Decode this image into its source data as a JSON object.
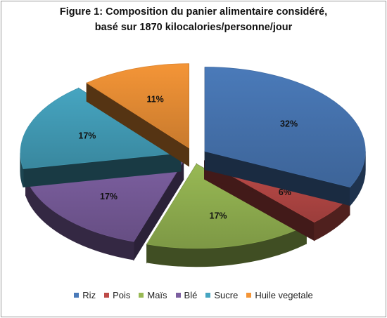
{
  "chart_data": {
    "type": "pie",
    "title_line1": "Figure 1: Composition du panier alimentaire considéré,",
    "title_line2": "basé sur 1870  kilocalories/personne/jour",
    "slices": [
      {
        "name": "Riz",
        "value": 32,
        "label": "32%",
        "color": "#4a7ab9"
      },
      {
        "name": "Pois",
        "value": 6,
        "label": "6%",
        "color": "#bd4b48"
      },
      {
        "name": "Maïs",
        "value": 17,
        "label": "17%",
        "color": "#98b954"
      },
      {
        "name": "Blé",
        "value": 17,
        "label": "17%",
        "color": "#7c5fa0"
      },
      {
        "name": "Sucre",
        "value": 17,
        "label": "17%",
        "color": "#46a5c1"
      },
      {
        "name": "Huile vegetale",
        "value": 11,
        "label": "11%",
        "color": "#f49537"
      }
    ],
    "legend_position": "bottom",
    "style": "exploded-3d"
  }
}
